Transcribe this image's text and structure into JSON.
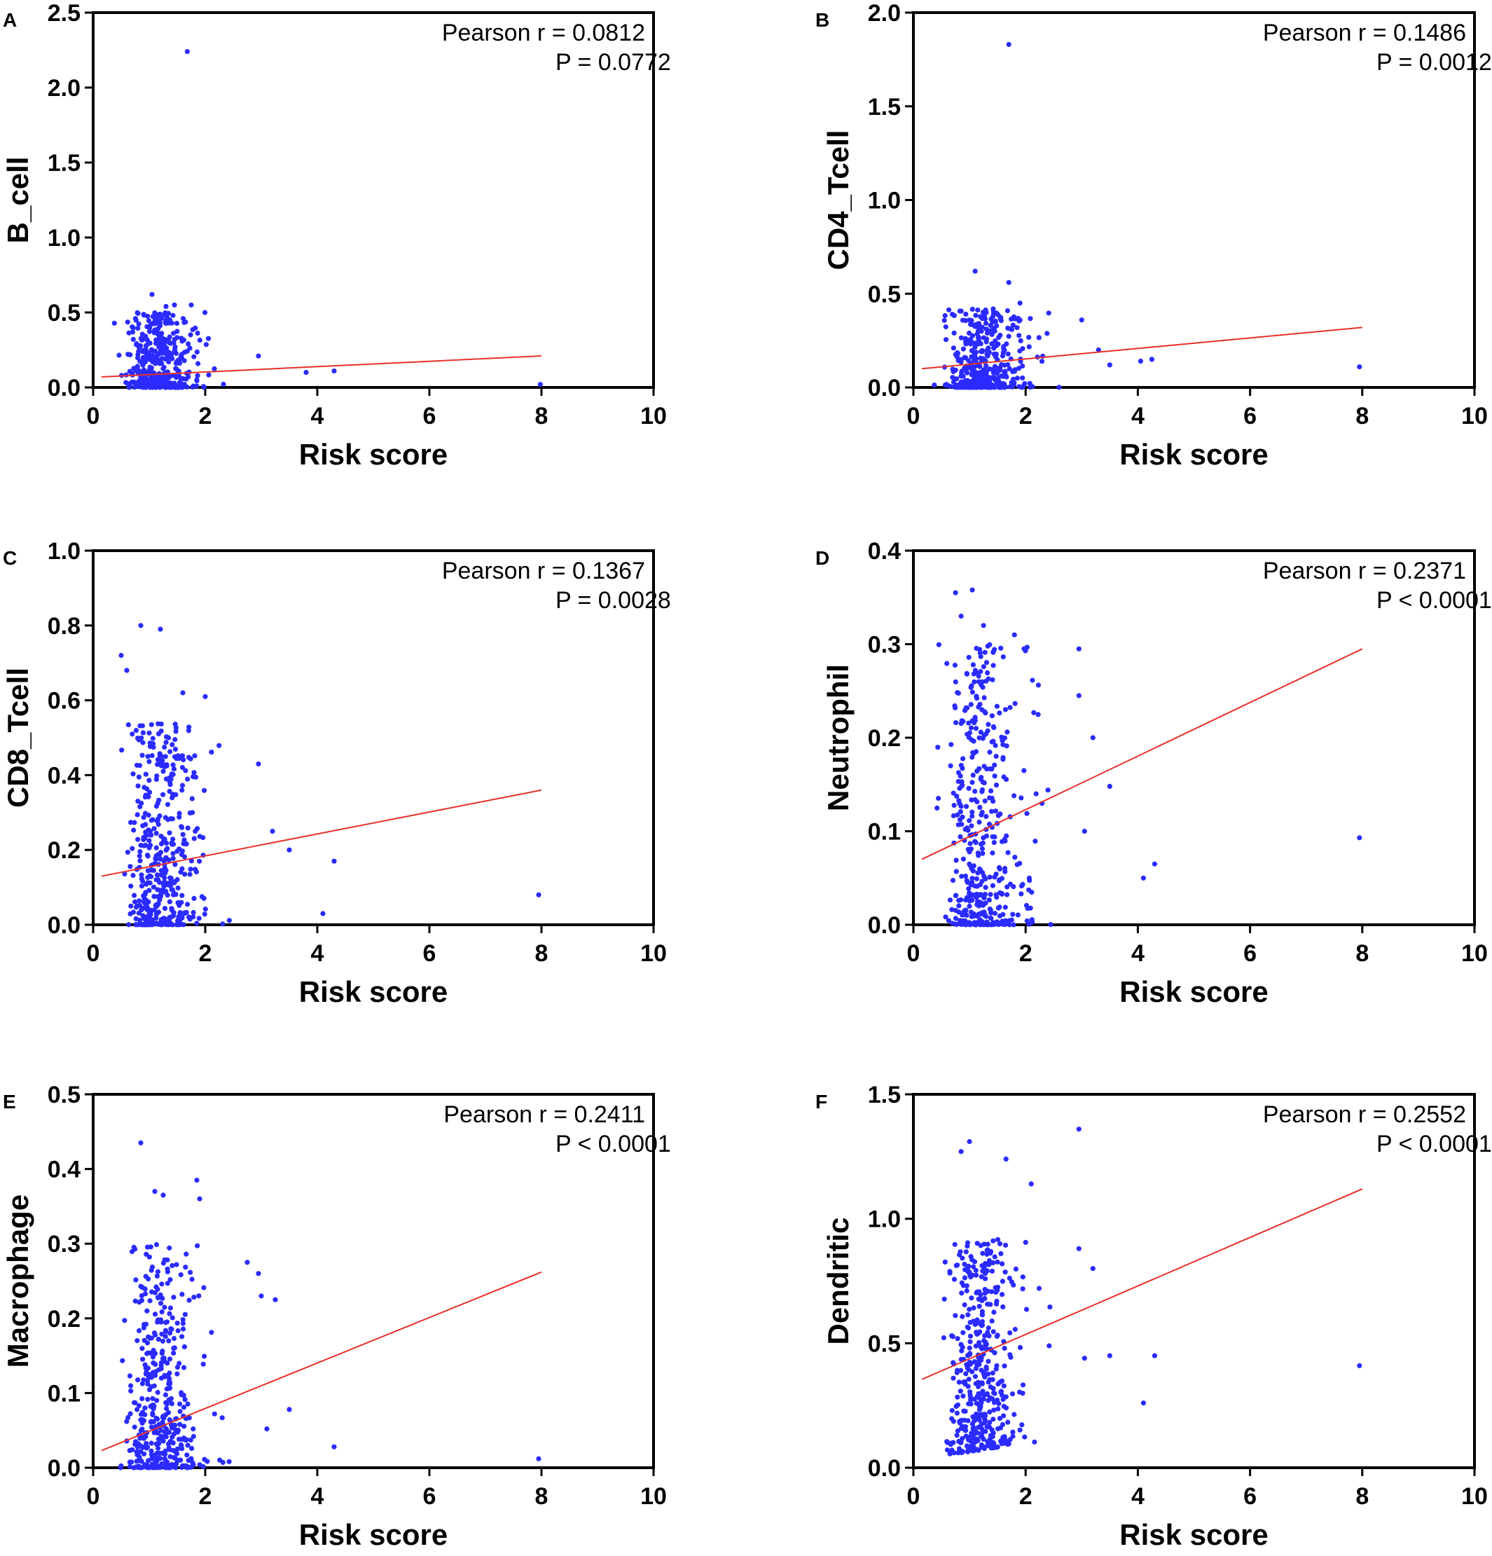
{
  "chart_data": [
    {
      "panel": "A",
      "type": "scatter",
      "ylabel": "B_cell",
      "xlabel": "Risk score",
      "xlim": [
        0,
        10
      ],
      "ylim": [
        0,
        2.5
      ],
      "xticks": [
        "0",
        "2",
        "4",
        "6",
        "8",
        "10"
      ],
      "yticks": [
        "0.0",
        "0.5",
        "1.0",
        "1.5",
        "2.0",
        "2.5"
      ],
      "annotation": [
        "Pearson r = 0.0812",
        "P = 0.0772"
      ],
      "fit": {
        "x1": 0.15,
        "y1": 0.07,
        "x2": 8.0,
        "y2": 0.21
      },
      "outliers": [
        [
          1.68,
          2.24
        ],
        [
          1.05,
          0.62
        ],
        [
          1.45,
          0.55
        ],
        [
          1.75,
          0.55
        ],
        [
          1.3,
          0.54
        ],
        [
          2.95,
          0.21
        ],
        [
          3.8,
          0.1
        ],
        [
          4.3,
          0.11
        ],
        [
          7.98,
          0.02
        ]
      ],
      "cluster": {
        "n": 420,
        "xmin": 0.35,
        "xmax": 2.6,
        "xmode": 0.95,
        "ymax": 0.5,
        "shape": 0.35
      }
    },
    {
      "panel": "B",
      "type": "scatter",
      "ylabel": "CD4_Tcell",
      "xlabel": "Risk score",
      "xlim": [
        0,
        10
      ],
      "ylim": [
        0,
        2.0
      ],
      "xticks": [
        "0",
        "2",
        "4",
        "6",
        "8",
        "10"
      ],
      "yticks": [
        "0.0",
        "0.5",
        "1.0",
        "1.5",
        "2.0"
      ],
      "annotation": [
        "Pearson r = 0.1486",
        "P = 0.0012"
      ],
      "fit": {
        "x1": 0.15,
        "y1": 0.1,
        "x2": 8.0,
        "y2": 0.32
      },
      "outliers": [
        [
          1.7,
          1.83
        ],
        [
          1.1,
          0.62
        ],
        [
          1.7,
          0.56
        ],
        [
          1.9,
          0.45
        ],
        [
          3.0,
          0.36
        ],
        [
          3.3,
          0.2
        ],
        [
          3.5,
          0.12
        ],
        [
          4.05,
          0.14
        ],
        [
          4.25,
          0.15
        ],
        [
          7.95,
          0.11
        ]
      ],
      "cluster": {
        "n": 420,
        "xmin": 0.35,
        "xmax": 2.7,
        "xmode": 1.0,
        "ymax": 0.42,
        "shape": 0.45
      }
    },
    {
      "panel": "C",
      "type": "scatter",
      "ylabel": "CD8_Tcell",
      "xlabel": "Risk score",
      "xlim": [
        0,
        10
      ],
      "ylim": [
        0,
        1.0
      ],
      "xticks": [
        "0",
        "2",
        "4",
        "6",
        "8",
        "10"
      ],
      "yticks": [
        "0.0",
        "0.2",
        "0.4",
        "0.6",
        "0.8",
        "1.0"
      ],
      "annotation": [
        "Pearson r = 0.1367",
        "P = 0.0028"
      ],
      "fit": {
        "x1": 0.15,
        "y1": 0.13,
        "x2": 8.0,
        "y2": 0.36
      },
      "outliers": [
        [
          0.85,
          0.8
        ],
        [
          1.2,
          0.79
        ],
        [
          0.5,
          0.72
        ],
        [
          0.6,
          0.68
        ],
        [
          1.6,
          0.62
        ],
        [
          2.0,
          0.61
        ],
        [
          2.95,
          0.43
        ],
        [
          3.2,
          0.25
        ],
        [
          3.5,
          0.2
        ],
        [
          4.3,
          0.17
        ],
        [
          4.1,
          0.03
        ],
        [
          7.95,
          0.08
        ]
      ],
      "cluster": {
        "n": 440,
        "xmin": 0.4,
        "xmax": 2.6,
        "xmode": 0.95,
        "ymax": 0.55,
        "shape": 0.55
      }
    },
    {
      "panel": "D",
      "type": "scatter",
      "ylabel": "Neutrophil",
      "xlabel": "Risk score",
      "xlim": [
        0,
        10
      ],
      "ylim": [
        0,
        0.4
      ],
      "xticks": [
        "0",
        "2",
        "4",
        "6",
        "8",
        "10"
      ],
      "yticks": [
        "0.0",
        "0.1",
        "0.2",
        "0.3",
        "0.4"
      ],
      "annotation": [
        "Pearson r = 0.2371",
        "P < 0.0001"
      ],
      "fit": {
        "x1": 0.15,
        "y1": 0.07,
        "x2": 8.0,
        "y2": 0.295
      },
      "outliers": [
        [
          0.75,
          0.355
        ],
        [
          1.05,
          0.358
        ],
        [
          0.85,
          0.33
        ],
        [
          1.25,
          0.32
        ],
        [
          1.8,
          0.31
        ],
        [
          2.95,
          0.295
        ],
        [
          2.95,
          0.245
        ],
        [
          3.2,
          0.2
        ],
        [
          3.5,
          0.148
        ],
        [
          3.05,
          0.1
        ],
        [
          4.1,
          0.05
        ],
        [
          4.3,
          0.065
        ],
        [
          7.95,
          0.093
        ]
      ],
      "cluster": {
        "n": 440,
        "xmin": 0.35,
        "xmax": 2.6,
        "xmode": 0.9,
        "ymax": 0.3,
        "shape": 0.7
      }
    },
    {
      "panel": "E",
      "type": "scatter",
      "ylabel": "Macrophage",
      "xlabel": "Risk score",
      "xlim": [
        0,
        10
      ],
      "ylim": [
        0,
        0.5
      ],
      "xticks": [
        "0",
        "2",
        "4",
        "6",
        "8",
        "10"
      ],
      "yticks": [
        "0.0",
        "0.1",
        "0.2",
        "0.3",
        "0.4",
        "0.5"
      ],
      "annotation": [
        "Pearson r = 0.2411",
        "P < 0.0001"
      ],
      "fit": {
        "x1": 0.15,
        "y1": 0.023,
        "x2": 8.0,
        "y2": 0.262
      },
      "outliers": [
        [
          0.85,
          0.435
        ],
        [
          1.85,
          0.385
        ],
        [
          1.9,
          0.36
        ],
        [
          1.1,
          0.37
        ],
        [
          1.25,
          0.365
        ],
        [
          2.75,
          0.275
        ],
        [
          2.95,
          0.26
        ],
        [
          3.0,
          0.23
        ],
        [
          3.25,
          0.225
        ],
        [
          3.5,
          0.078
        ],
        [
          3.1,
          0.052
        ],
        [
          4.3,
          0.028
        ],
        [
          7.95,
          0.012
        ]
      ],
      "cluster": {
        "n": 430,
        "xmin": 0.35,
        "xmax": 2.6,
        "xmode": 1.0,
        "ymax": 0.3,
        "shape": 0.25
      }
    },
    {
      "panel": "F",
      "type": "scatter",
      "ylabel": "Dendritic",
      "xlabel": "Risk score",
      "xlim": [
        0,
        10
      ],
      "ylim": [
        0,
        1.5
      ],
      "xticks": [
        "0",
        "2",
        "4",
        "6",
        "8",
        "10"
      ],
      "yticks": [
        "0.0",
        "0.5",
        "1.0",
        "1.5"
      ],
      "annotation": [
        "Pearson r = 0.2552",
        "P < 0.0001"
      ],
      "fit": {
        "x1": 0.15,
        "y1": 0.355,
        "x2": 8.0,
        "y2": 1.12
      },
      "outliers": [
        [
          2.95,
          1.36
        ],
        [
          1.0,
          1.31
        ],
        [
          0.85,
          1.27
        ],
        [
          1.65,
          1.24
        ],
        [
          2.1,
          1.14
        ],
        [
          2.95,
          0.88
        ],
        [
          3.2,
          0.8
        ],
        [
          3.5,
          0.45
        ],
        [
          3.05,
          0.44
        ],
        [
          4.1,
          0.26
        ],
        [
          4.3,
          0.45
        ],
        [
          7.95,
          0.41
        ]
      ],
      "cluster": {
        "n": 440,
        "xmin": 0.35,
        "xmax": 2.6,
        "xmode": 0.95,
        "ymax": 1.1,
        "yfloor": 0.05,
        "shape": 1.2
      }
    }
  ]
}
